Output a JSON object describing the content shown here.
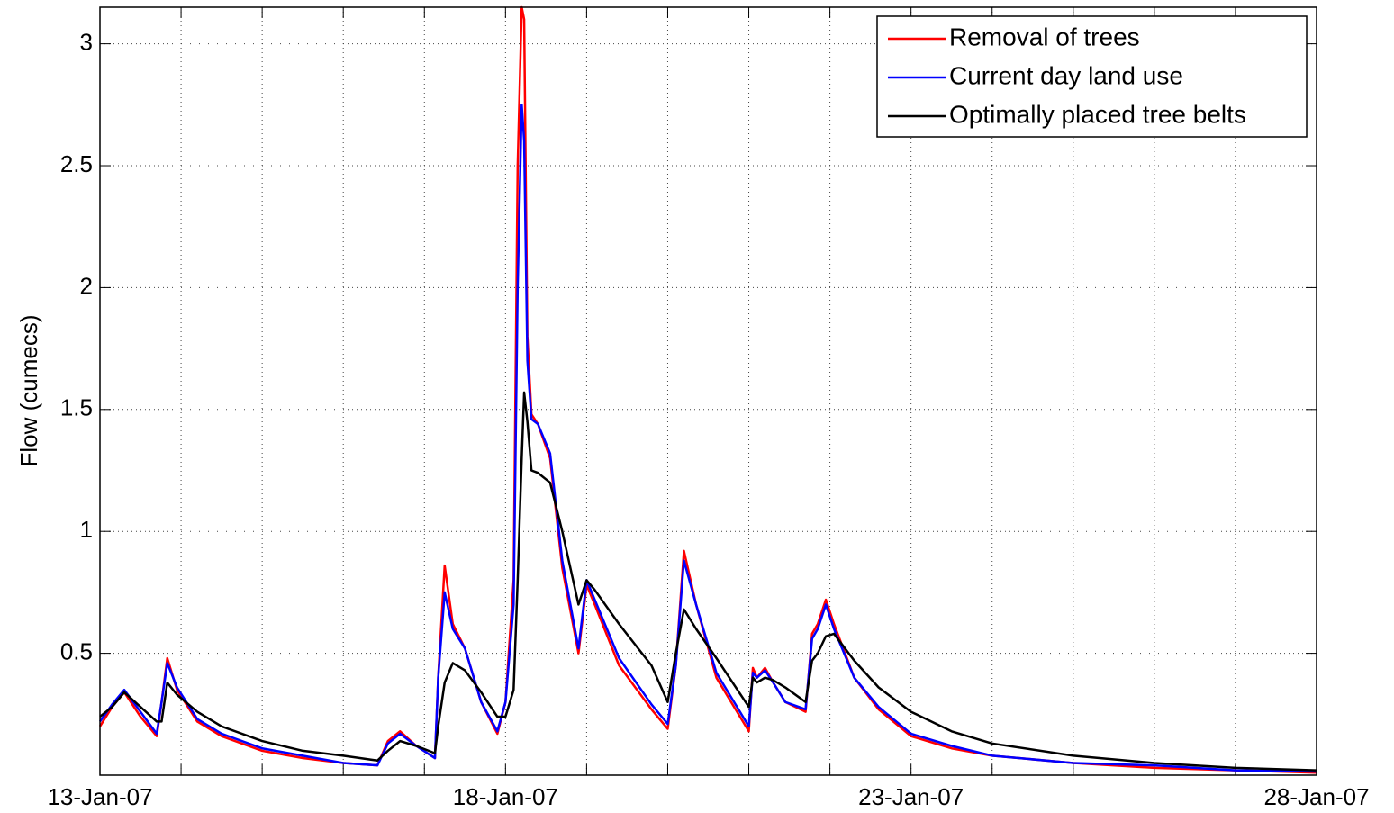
{
  "chart_data": {
    "type": "line",
    "ylabel": "Flow (cumecs)",
    "xlim": [
      13,
      28
    ],
    "xticks": [
      {
        "value": 13,
        "label": "13-Jan-07"
      },
      {
        "value": 14,
        "label": null
      },
      {
        "value": 15,
        "label": null
      },
      {
        "value": 16,
        "label": null
      },
      {
        "value": 17,
        "label": null
      },
      {
        "value": 18,
        "label": "18-Jan-07"
      },
      {
        "value": 19,
        "label": null
      },
      {
        "value": 20,
        "label": null
      },
      {
        "value": 21,
        "label": null
      },
      {
        "value": 22,
        "label": null
      },
      {
        "value": 23,
        "label": "23-Jan-07"
      },
      {
        "value": 24,
        "label": null
      },
      {
        "value": 25,
        "label": null
      },
      {
        "value": 26,
        "label": null
      },
      {
        "value": 27,
        "label": null
      },
      {
        "value": 28,
        "label": "28-Jan-07"
      }
    ],
    "ylim": [
      0,
      3.15
    ],
    "yticks": [
      0.5,
      1,
      1.5,
      2,
      2.5,
      3
    ],
    "grid": true,
    "legend": "upper right",
    "x": [
      13.0,
      13.15,
      13.3,
      13.5,
      13.7,
      13.76,
      13.83,
      13.95,
      14.2,
      14.5,
      15,
      15.5,
      16,
      16.42,
      16.55,
      16.7,
      16.9,
      17.13,
      17.17,
      17.25,
      17.35,
      17.5,
      17.7,
      17.9,
      18.0,
      18.1,
      18.15,
      18.2,
      18.23,
      18.27,
      18.32,
      18.4,
      18.55,
      18.7,
      18.9,
      19.0,
      19.1,
      19.4,
      19.8,
      20.0,
      20.1,
      20.2,
      20.35,
      20.6,
      21.0,
      21.05,
      21.1,
      21.2,
      21.3,
      21.45,
      21.7,
      21.78,
      21.85,
      21.95,
      22.05,
      22.3,
      22.6,
      23,
      23.5,
      24,
      25,
      26,
      27,
      28
    ],
    "series": [
      {
        "name": "Removal of trees",
        "color": "#ff0000",
        "values": [
          0.2,
          0.28,
          0.34,
          0.24,
          0.16,
          0.3,
          0.48,
          0.35,
          0.22,
          0.16,
          0.1,
          0.07,
          0.05,
          0.04,
          0.14,
          0.18,
          0.12,
          0.07,
          0.4,
          0.86,
          0.62,
          0.52,
          0.3,
          0.17,
          0.3,
          0.8,
          2.5,
          3.15,
          3.1,
          1.8,
          1.48,
          1.44,
          1.3,
          0.85,
          0.5,
          0.78,
          0.7,
          0.45,
          0.27,
          0.19,
          0.45,
          0.92,
          0.7,
          0.4,
          0.18,
          0.44,
          0.4,
          0.44,
          0.38,
          0.3,
          0.26,
          0.58,
          0.62,
          0.72,
          0.62,
          0.4,
          0.27,
          0.16,
          0.11,
          0.08,
          0.05,
          0.03,
          0.02,
          0.01
        ]
      },
      {
        "name": "Current day land use",
        "color": "#0000ff",
        "values": [
          0.22,
          0.29,
          0.35,
          0.26,
          0.17,
          0.3,
          0.46,
          0.36,
          0.23,
          0.17,
          0.11,
          0.08,
          0.05,
          0.04,
          0.13,
          0.17,
          0.12,
          0.07,
          0.4,
          0.75,
          0.6,
          0.52,
          0.3,
          0.18,
          0.3,
          0.7,
          2.0,
          2.75,
          2.6,
          1.7,
          1.46,
          1.44,
          1.32,
          0.88,
          0.52,
          0.8,
          0.72,
          0.48,
          0.29,
          0.21,
          0.45,
          0.88,
          0.7,
          0.42,
          0.2,
          0.42,
          0.4,
          0.43,
          0.38,
          0.3,
          0.27,
          0.56,
          0.6,
          0.7,
          0.6,
          0.4,
          0.28,
          0.17,
          0.12,
          0.08,
          0.05,
          0.04,
          0.02,
          0.015
        ]
      },
      {
        "name": "Optimally placed tree belts",
        "color": "#000000",
        "values": [
          0.24,
          0.28,
          0.34,
          0.28,
          0.22,
          0.22,
          0.38,
          0.33,
          0.26,
          0.2,
          0.14,
          0.1,
          0.08,
          0.06,
          0.1,
          0.14,
          0.12,
          0.09,
          0.2,
          0.38,
          0.46,
          0.43,
          0.34,
          0.24,
          0.24,
          0.35,
          0.8,
          1.3,
          1.57,
          1.45,
          1.25,
          1.24,
          1.2,
          1.0,
          0.7,
          0.8,
          0.76,
          0.62,
          0.45,
          0.3,
          0.5,
          0.68,
          0.6,
          0.48,
          0.28,
          0.4,
          0.38,
          0.4,
          0.39,
          0.36,
          0.3,
          0.47,
          0.5,
          0.57,
          0.58,
          0.47,
          0.36,
          0.26,
          0.18,
          0.13,
          0.08,
          0.05,
          0.03,
          0.02
        ]
      }
    ]
  }
}
